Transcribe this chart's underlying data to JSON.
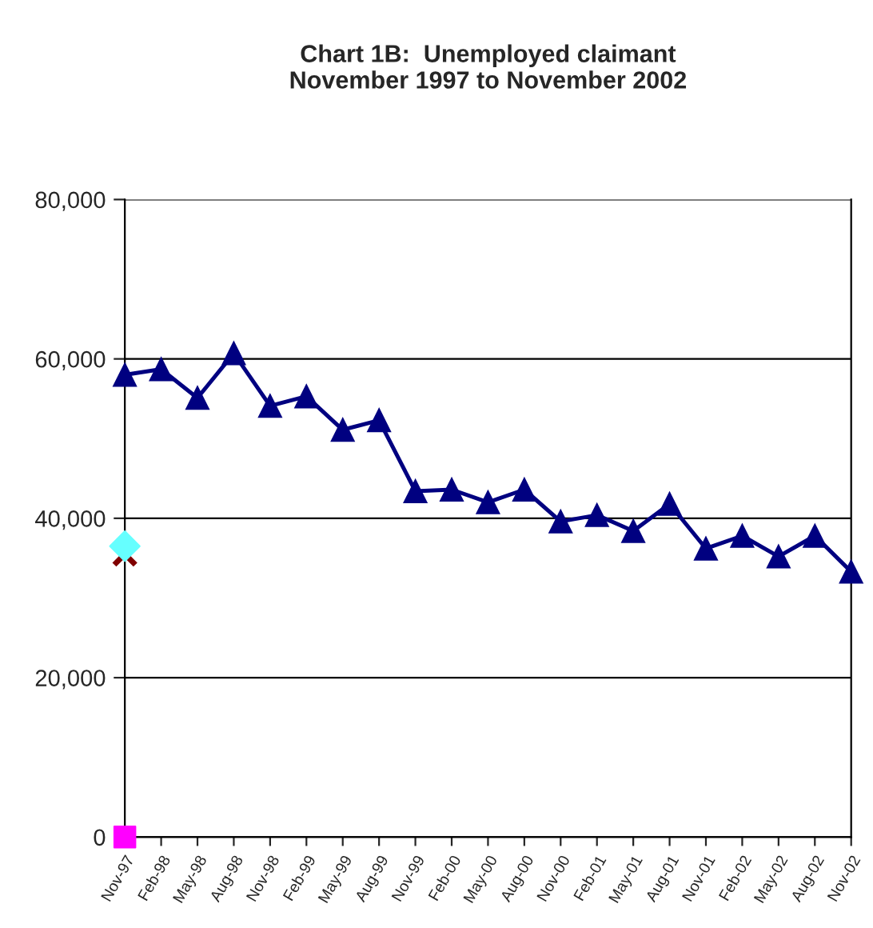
{
  "chart_data": {
    "type": "line",
    "title": "Chart 1B:  Unemployed claimant\nNovember 1997 to November 2002",
    "categories": [
      "Nov-97",
      "Feb-98",
      "May-98",
      "Aug-98",
      "Nov-98",
      "Feb-99",
      "May-99",
      "Aug-99",
      "Nov-99",
      "Feb-00",
      "May-00",
      "Aug-00",
      "Nov-00",
      "Feb-01",
      "May-01",
      "Aug-01",
      "Nov-01",
      "Feb-02",
      "May-02",
      "Aug-02",
      "Nov-02"
    ],
    "series": [
      {
        "color": "#000080",
        "marker": "triangle",
        "values": [
          58000,
          58700,
          55100,
          60700,
          54100,
          55300,
          51100,
          52300,
          43400,
          43600,
          42000,
          43600,
          39600,
          40400,
          38400,
          41800,
          36200,
          37800,
          35200,
          37800,
          33300
        ]
      },
      {
        "type": "scatter",
        "color": "#ff00ff",
        "marker": "square",
        "x": [
          "Nov-97"
        ],
        "values": [
          0
        ]
      },
      {
        "type": "scatter",
        "color": "#800000",
        "marker": "cross",
        "x": [
          "Nov-97"
        ],
        "values": [
          35500
        ]
      },
      {
        "type": "scatter",
        "color": "#66ffff",
        "marker": "diamond",
        "x": [
          "Nov-97"
        ],
        "values": [
          36500
        ]
      }
    ],
    "ylim": [
      0,
      80000
    ],
    "yticks": [
      0,
      {
        "value": 20000,
        "label": "20,000"
      },
      {
        "value": 40000,
        "label": "40,000"
      },
      {
        "value": 60000,
        "label": "60,000"
      },
      {
        "value": 80000,
        "label": "80,000"
      }
    ],
    "grid": "y",
    "line_style": "solid"
  }
}
